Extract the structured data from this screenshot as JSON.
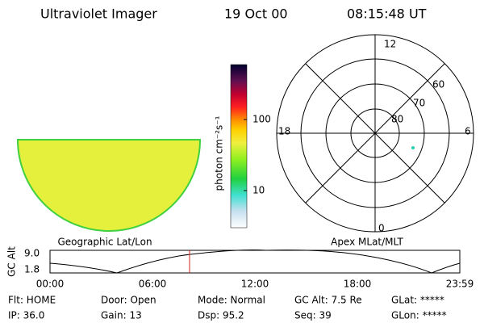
{
  "header": {
    "title": "Ultraviolet Imager",
    "date": "19 Oct 00",
    "time": "08:15:48 UT"
  },
  "image_panel": {
    "label": "Geographic Lat/Lon"
  },
  "colorbar": {
    "label": "photon cm⁻²s⁻¹",
    "ticks": [
      "100",
      "10"
    ]
  },
  "polar_panel": {
    "label": "Apex MLat/MLT",
    "mlt_labels": [
      "12",
      "18",
      "6",
      "0"
    ],
    "lat_labels": [
      "60",
      "70",
      "80"
    ]
  },
  "timeline": {
    "axis_label": "GC Alt",
    "y_ticks": [
      "9.0",
      "1.8"
    ],
    "x_ticks": [
      "00:00",
      "06:00",
      "12:00",
      "18:00",
      "23:59"
    ]
  },
  "status": {
    "rows": [
      [
        "Flt: HOME",
        "Door: Open",
        "Mode: Normal",
        "GC Alt: 7.5 Re",
        "GLat: *****"
      ],
      [
        "IP: 36.0",
        "Gain: 13",
        "Dsp: 95.2",
        "Seq: 39",
        "GLon: *****"
      ]
    ]
  }
}
